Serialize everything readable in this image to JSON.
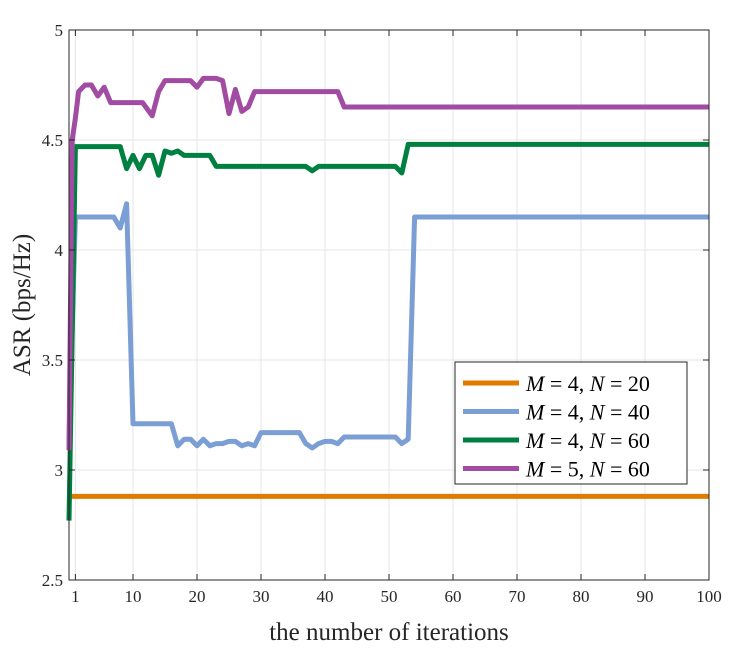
{
  "chart_data": {
    "type": "line",
    "xlabel": "the number of iterations",
    "ylabel": "ASR (bps/Hz)",
    "xlim": [
      0,
      100
    ],
    "ylim": [
      2.5,
      5
    ],
    "xticks": [
      1,
      10,
      20,
      30,
      40,
      50,
      60,
      70,
      80,
      90,
      100
    ],
    "yticks": [
      2.5,
      3,
      3.5,
      4,
      4.5,
      5
    ],
    "xtick_labels": [
      "1",
      "10",
      "20",
      "30",
      "40",
      "50",
      "60",
      "70",
      "80",
      "90",
      "100"
    ],
    "ytick_labels": [
      "2.5",
      "3",
      "3.5",
      "4",
      "4.5",
      "5"
    ],
    "grid": true,
    "legend_position": "bottom-right",
    "series": [
      {
        "name": "M = 4, N = 20",
        "legend": {
          "m_sym": "M",
          "m_eq": " = 4, ",
          "n_sym": "N",
          "n_eq": " = 20"
        },
        "color": "#E07B00",
        "points": [
          [
            0,
            2.88
          ],
          [
            100,
            2.88
          ]
        ]
      },
      {
        "name": "M = 4, N = 40",
        "legend": {
          "m_sym": "M",
          "m_eq": " = 4, ",
          "n_sym": "N",
          "n_eq": " = 40"
        },
        "color": "#7B9FD4",
        "points": [
          [
            0,
            3.13
          ],
          [
            1,
            4.15
          ],
          [
            7,
            4.15
          ],
          [
            8,
            4.1
          ],
          [
            9,
            4.21
          ],
          [
            10,
            3.21
          ],
          [
            16,
            3.21
          ],
          [
            17,
            3.11
          ],
          [
            18,
            3.14
          ],
          [
            19,
            3.14
          ],
          [
            20,
            3.11
          ],
          [
            21,
            3.14
          ],
          [
            22,
            3.11
          ],
          [
            23,
            3.12
          ],
          [
            24,
            3.12
          ],
          [
            25,
            3.13
          ],
          [
            26,
            3.13
          ],
          [
            27,
            3.11
          ],
          [
            28,
            3.12
          ],
          [
            29,
            3.11
          ],
          [
            30,
            3.17
          ],
          [
            36,
            3.17
          ],
          [
            37,
            3.12
          ],
          [
            38,
            3.1
          ],
          [
            39,
            3.12
          ],
          [
            40,
            3.13
          ],
          [
            41,
            3.13
          ],
          [
            42,
            3.12
          ],
          [
            43,
            3.15
          ],
          [
            51,
            3.15
          ],
          [
            52,
            3.12
          ],
          [
            53,
            3.14
          ],
          [
            54,
            4.15
          ],
          [
            100,
            4.15
          ]
        ]
      },
      {
        "name": "M = 4, N = 60",
        "legend": {
          "m_sym": "M",
          "m_eq": " = 4, ",
          "n_sym": "N",
          "n_eq": " = 60"
        },
        "color": "#008040",
        "points": [
          [
            0,
            2.77
          ],
          [
            1,
            4.47
          ],
          [
            8,
            4.47
          ],
          [
            9,
            4.37
          ],
          [
            10,
            4.43
          ],
          [
            11,
            4.37
          ],
          [
            12,
            4.43
          ],
          [
            13,
            4.43
          ],
          [
            14,
            4.34
          ],
          [
            15,
            4.45
          ],
          [
            16,
            4.44
          ],
          [
            17,
            4.45
          ],
          [
            18,
            4.43
          ],
          [
            22,
            4.43
          ],
          [
            23,
            4.38
          ],
          [
            37,
            4.38
          ],
          [
            38,
            4.36
          ],
          [
            39,
            4.38
          ],
          [
            51,
            4.38
          ],
          [
            52,
            4.35
          ],
          [
            53,
            4.48
          ],
          [
            100,
            4.48
          ]
        ]
      },
      {
        "name": "M = 5, N = 60",
        "legend": {
          "m_sym": "M",
          "m_eq": " = 5, ",
          "n_sym": "N",
          "n_eq": " = 60"
        },
        "color": "#A24BA2",
        "points": [
          [
            0,
            3.09
          ],
          [
            0.5,
            4.5
          ],
          [
            1,
            4.6
          ],
          [
            1.5,
            4.72
          ],
          [
            2.5,
            4.75
          ],
          [
            3.5,
            4.75
          ],
          [
            4.5,
            4.7
          ],
          [
            5.5,
            4.74
          ],
          [
            6.5,
            4.67
          ],
          [
            11.5,
            4.67
          ],
          [
            13,
            4.61
          ],
          [
            14,
            4.72
          ],
          [
            15,
            4.77
          ],
          [
            19,
            4.77
          ],
          [
            20,
            4.74
          ],
          [
            21,
            4.78
          ],
          [
            23,
            4.78
          ],
          [
            24,
            4.77
          ],
          [
            25,
            4.62
          ],
          [
            26,
            4.73
          ],
          [
            27,
            4.63
          ],
          [
            28,
            4.65
          ],
          [
            29,
            4.72
          ],
          [
            42,
            4.72
          ],
          [
            43,
            4.65
          ],
          [
            100,
            4.65
          ]
        ]
      }
    ]
  }
}
